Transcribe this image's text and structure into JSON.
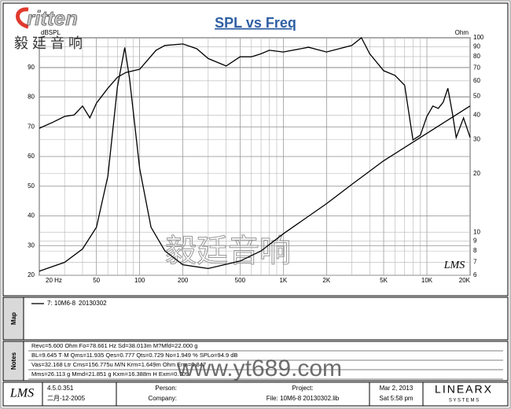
{
  "chart_data": {
    "type": "line",
    "title": "SPL vs Freq",
    "ylabel": "dBSPL",
    "y2label": "Ohm",
    "xscale": "log",
    "y2scale": "log",
    "grid": true,
    "xlim": [
      20,
      20000
    ],
    "xticks": [
      {
        "value": 20,
        "label": "20  Hz"
      },
      50,
      100,
      200,
      500,
      {
        "value": 1000,
        "label": "1K"
      },
      {
        "value": 2000,
        "label": "2K"
      },
      {
        "value": 5000,
        "label": "5K"
      },
      {
        "value": 10000,
        "label": "10K"
      },
      {
        "value": 20000,
        "label": "20K"
      }
    ],
    "xgrid": [
      30,
      40,
      60,
      70,
      80,
      90,
      300,
      400,
      600,
      700,
      800,
      900,
      3000,
      4000,
      6000,
      7000,
      8000,
      9000
    ],
    "ylim": [
      20,
      100
    ],
    "yticks": [
      20,
      30,
      40,
      50,
      60,
      70,
      80,
      90
    ],
    "y2lim": [
      6,
      100
    ],
    "y2ticks": [
      6,
      7,
      8,
      9,
      10,
      20,
      30,
      40,
      50,
      60,
      70,
      80,
      90,
      100
    ],
    "series": [
      {
        "color": "#000000",
        "axis": "y",
        "x": [
          20,
          25,
          30,
          35,
          40,
          45,
          50,
          60,
          70,
          80,
          100,
          130,
          150,
          200,
          250,
          300,
          400,
          500,
          600,
          700,
          800,
          1000,
          1500,
          2000,
          3000,
          3500,
          4000,
          5000,
          6000,
          7000,
          8000,
          9000,
          10000,
          11000,
          12000,
          13000,
          14000,
          15000,
          16000,
          18000,
          20000
        ],
        "values": [
          69.5,
          71.6,
          73.5,
          74,
          77,
          73,
          78,
          83,
          86.7,
          88.3,
          89.4,
          95.8,
          97.4,
          97.9,
          96.3,
          93,
          90.5,
          93.6,
          93.6,
          94.6,
          95.8,
          95.2,
          96.8,
          95.2,
          97.4,
          100,
          94.6,
          88.9,
          87.3,
          84,
          65.6,
          67.2,
          73.5,
          77,
          76.2,
          78.3,
          83,
          75,
          66.4,
          73,
          66.4
        ]
      },
      {
        "color": "#000000",
        "axis": "y2",
        "x": [
          20,
          30,
          40,
          50,
          60,
          70,
          78.7,
          85,
          100,
          120,
          150,
          200,
          300,
          500,
          700,
          1000,
          2000,
          3000,
          5000,
          10000,
          20000
        ],
        "values": [
          6.3,
          7,
          8.2,
          10.6,
          19.4,
          56,
          89,
          61.6,
          21.2,
          10.6,
          8,
          6.8,
          6.5,
          7.1,
          8,
          9.8,
          14,
          17.6,
          23.3,
          32.2,
          44.6
        ]
      }
    ],
    "legend_label": "7: 10M6-8",
    "legend_date": "20130302"
  },
  "logo": {
    "brand": "ritten",
    "chinese": "毅 廷 音 响"
  },
  "watermark": {
    "chinese": "毅廷音响",
    "url": "www.yt689.com"
  },
  "plot_logo": "LMS",
  "panels": {
    "map": "Map",
    "notes": "Notes"
  },
  "notes": [
    "Revc=5.600 Ohm  Fo=78.661 Hz  Sd=38.013m M?Mfd=22.000 g",
    "BL=9.645 T·M  Qms=11.935  Qes=0.777  Qts=0.729  No=1.949 %  SPLo=94.9 dB",
    "Vas=32.168 Ltr  Cms=156.775u M/N  Krm=1.649m Ohm  Erm=0.847",
    "Mms=26.113 g  Mmd=21.851 g  Kxm=16.388m H  Exm=0.709"
  ],
  "footer": {
    "logo": "LMS",
    "version": "4.5.0.351",
    "build_date": "二月-12-2005",
    "person": "Person:",
    "company": "Company:",
    "project": "Project:",
    "file": "File: 10M6-8 20130302.lib",
    "date": "Mar 2, 2013",
    "time": "Sat  5:58 pm",
    "brand": "LINEARX",
    "brand_sub": "S Y S T E M S"
  }
}
